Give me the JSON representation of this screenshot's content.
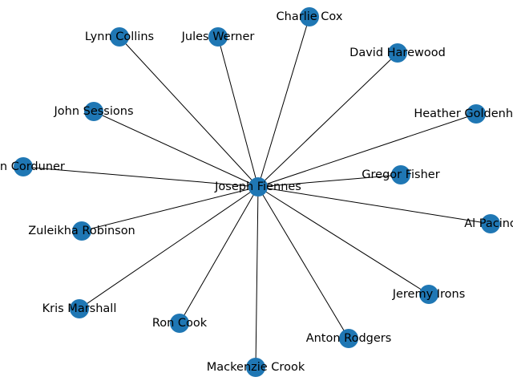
{
  "graph": {
    "center": "Joseph Fiennes",
    "neighbors": [
      "Lynn Collins",
      "Jules Werner",
      "Charlie Cox",
      "David Harewood",
      "John Sessions",
      "Heather Goldenhersh",
      "Alan Corduner",
      "Gregor Fisher",
      "Al Pacino",
      "Zuleikha Robinson",
      "Jeremy Irons",
      "Kris Marshall",
      "Ron Cook",
      "Anton Rodgers",
      "Mackenzie Crook"
    ],
    "colors": {
      "node": "#1f77b4",
      "edge": "#000000",
      "label": "#000000"
    }
  }
}
